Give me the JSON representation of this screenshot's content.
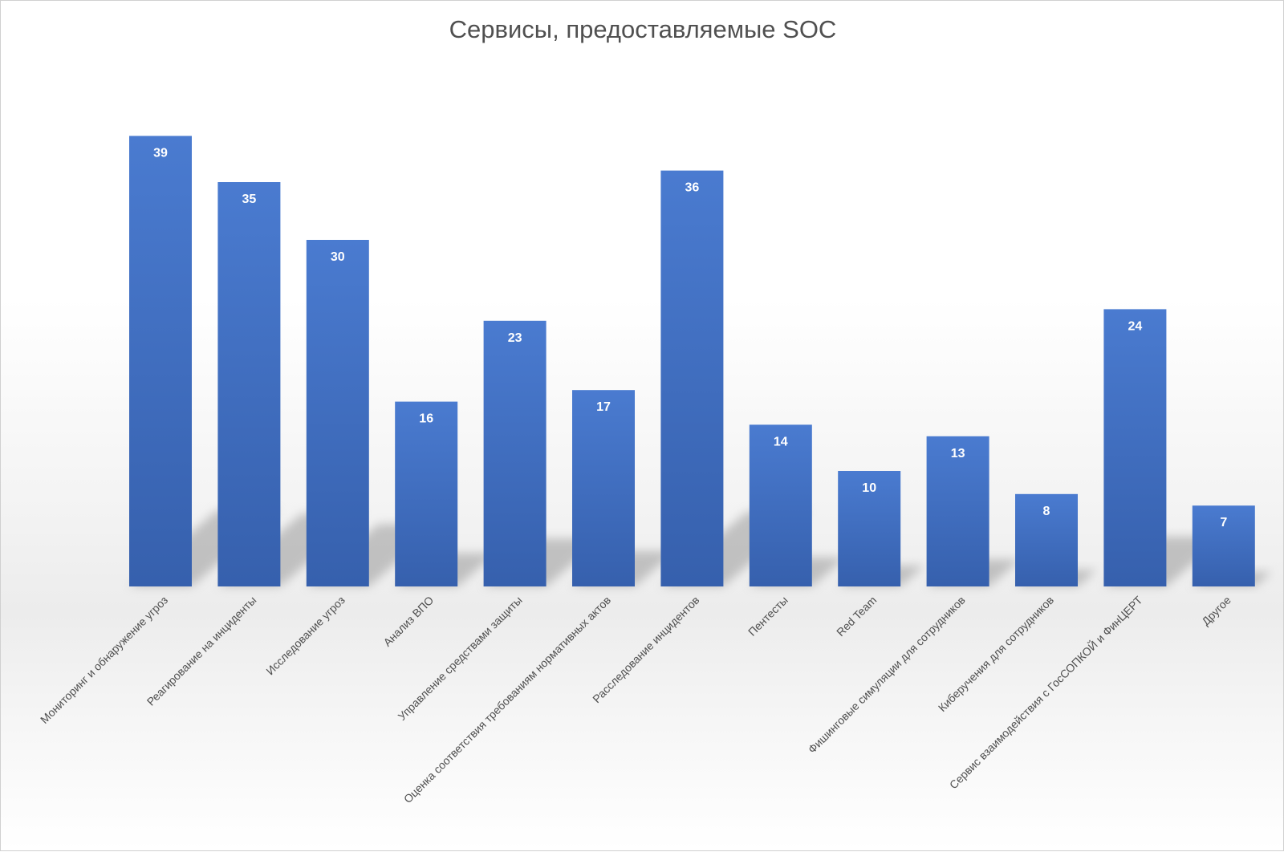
{
  "chart_data": {
    "type": "bar",
    "title": "Сервисы, предоставляемые SOC",
    "categories": [
      "Мониторинг и обнаружение угроз",
      "Реагирование на инциденты",
      "Исследование угроз",
      "Анализ ВПО",
      "Управление средствами защиты",
      "Оценка соответствия требованиям нормативных актов",
      "Расследование инцидентов",
      "Пентесты",
      "Red Team",
      "Фишинговые симуляции для сотрудников",
      "Киберучения для сотрудников",
      "Сервис взаимодействия с ГосСОПКОЙ и ФинЦЕРТ",
      "Другое"
    ],
    "values": [
      39,
      35,
      30,
      16,
      23,
      17,
      36,
      14,
      10,
      13,
      8,
      24,
      7
    ],
    "ylim": [
      0,
      40
    ],
    "grid": false,
    "bar_color": "#4472c4",
    "data_labels": true
  }
}
